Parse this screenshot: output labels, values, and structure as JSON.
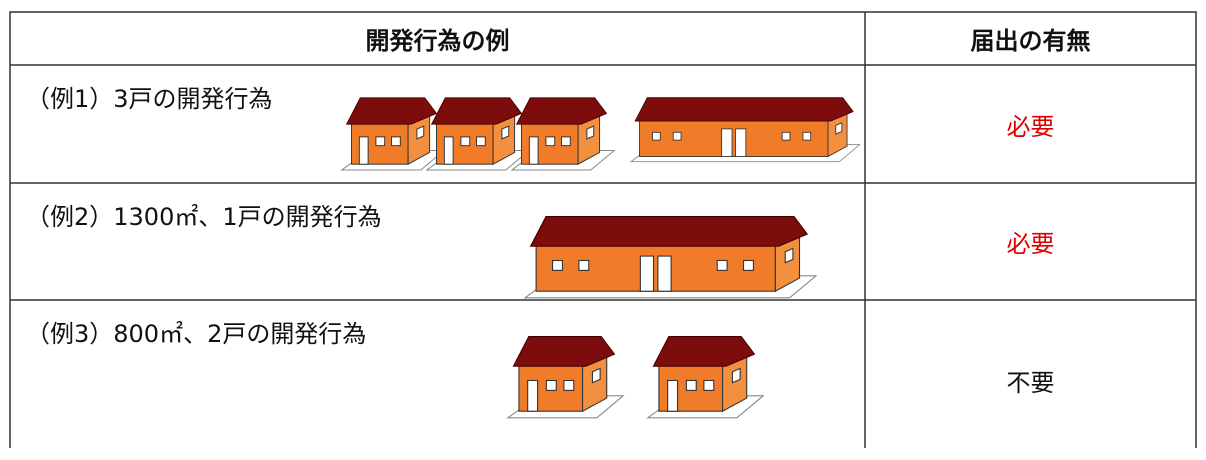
{
  "table": {
    "header": [
      "開発行為の例",
      "届出の有無"
    ],
    "rows": [
      [
        "（例1）3戸の開発行為",
        "必要"
      ],
      [
        "（例2）1300㎡、1戸の開発行為",
        "必要"
      ],
      [
        "（例3）800㎡、2戸の開発行為",
        "不要"
      ]
    ]
  }
}
